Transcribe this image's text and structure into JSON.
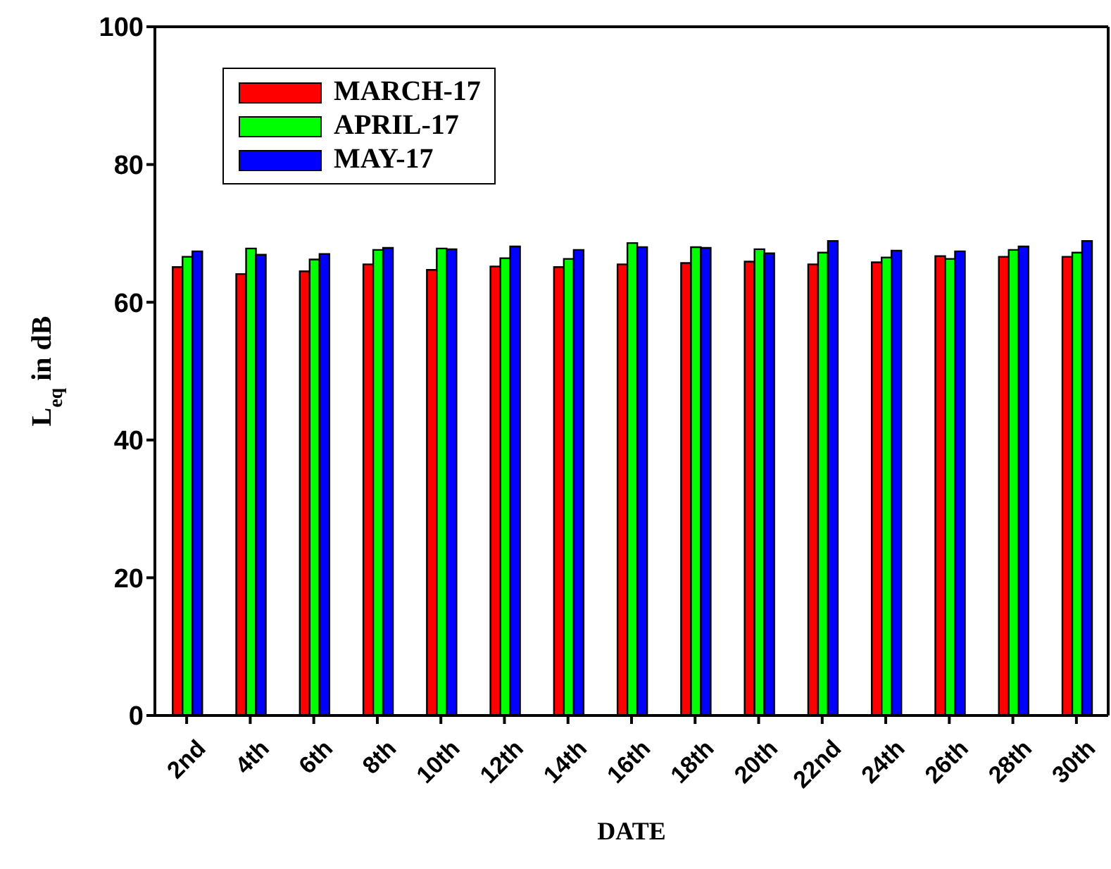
{
  "chart_data": {
    "type": "bar",
    "xlabel": "DATE",
    "ylabel": "L$_{eq}$ in dB",
    "categories": [
      "2nd",
      "4th",
      "6th",
      "8th",
      "10th",
      "12th",
      "14th",
      "16th",
      "18th",
      "20th",
      "22nd",
      "24th",
      "26th",
      "28th",
      "30th"
    ],
    "series": [
      {
        "name": "MARCH-17",
        "color": "#ff0000",
        "values": [
          65.1,
          64.1,
          64.5,
          65.5,
          64.7,
          65.2,
          65.1,
          65.5,
          65.7,
          65.9,
          65.5,
          65.8,
          66.7,
          66.6,
          66.6
        ]
      },
      {
        "name": "APRIL-17",
        "color": "#00ff00",
        "values": [
          66.6,
          67.8,
          66.2,
          67.6,
          67.8,
          66.4,
          66.3,
          68.6,
          68.0,
          67.7,
          67.2,
          66.5,
          66.3,
          67.6,
          67.2
        ]
      },
      {
        "name": "MAY-17",
        "color": "#0000ff",
        "values": [
          67.4,
          66.9,
          67.0,
          67.9,
          67.7,
          68.1,
          67.6,
          68.0,
          67.9,
          67.1,
          68.9,
          67.5,
          67.4,
          68.1,
          68.9
        ]
      }
    ],
    "ylim": [
      0,
      100
    ],
    "yticks": [
      0,
      20,
      40,
      60,
      80,
      100
    ],
    "grid": false,
    "legend": "top left"
  }
}
